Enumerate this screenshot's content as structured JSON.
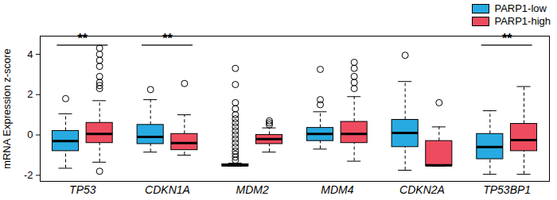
{
  "chart_data": {
    "type": "box",
    "y_label": "mRNA Expression z-score",
    "categories": [
      "TP53",
      "CDKN1A",
      "MDM2",
      "MDM4",
      "CDKN2A",
      "TP53BP1"
    ],
    "ylim": [
      -2.3,
      4.9
    ],
    "yticks": [
      -2,
      0,
      2,
      4
    ],
    "grid": false,
    "legend": "top-right",
    "series": [
      {
        "name": "PARP1-low",
        "color": "#27aae1",
        "boxes": [
          {
            "whisker_low": -1.65,
            "q1": -0.8,
            "median": -0.3,
            "q3": 0.2,
            "whisker_high": 1.05,
            "outliers": [
              1.8
            ]
          },
          {
            "whisker_low": -0.85,
            "q1": -0.45,
            "median": -0.1,
            "q3": 0.5,
            "whisker_high": 1.75,
            "outliers": [
              2.25
            ]
          },
          {
            "whisker_low": -1.55,
            "q1": -1.55,
            "median": -1.5,
            "q3": -1.45,
            "whisker_high": -1.4,
            "outliers": [
              -1.25,
              -1.1,
              -0.95,
              -0.8,
              -0.6,
              -0.4,
              -0.2,
              0.0,
              0.2,
              0.4,
              0.6,
              0.8,
              1.0,
              1.3,
              1.6,
              2.5,
              3.3
            ]
          },
          {
            "whisker_low": -0.7,
            "q1": -0.3,
            "median": 0.05,
            "q3": 0.35,
            "whisker_high": 1.15,
            "outliers": [
              1.5,
              1.75,
              3.25
            ]
          },
          {
            "whisker_low": -1.75,
            "q1": -0.6,
            "median": 0.1,
            "q3": 0.75,
            "whisker_high": 2.65,
            "outliers": [
              3.95
            ]
          },
          {
            "whisker_low": -1.95,
            "q1": -1.2,
            "median": -0.6,
            "q3": 0.05,
            "whisker_high": 1.2,
            "outliers": []
          }
        ]
      },
      {
        "name": "PARP1-high",
        "color": "#ef4b5f",
        "boxes": [
          {
            "whisker_low": -1.35,
            "q1": -0.4,
            "median": 0.05,
            "q3": 0.6,
            "whisker_high": 1.7,
            "outliers": [
              -1.8,
              2.3,
              2.45,
              2.6,
              2.9,
              3.4,
              3.7,
              4.0,
              4.3
            ]
          },
          {
            "whisker_low": -1.0,
            "q1": -0.75,
            "median": -0.4,
            "q3": 0.05,
            "whisker_high": 1.0,
            "outliers": [
              2.55
            ]
          },
          {
            "whisker_low": -0.85,
            "q1": -0.45,
            "median": -0.2,
            "q3": 0.0,
            "whisker_high": 0.35,
            "outliers": [
              0.5,
              0.6,
              0.7
            ]
          },
          {
            "whisker_low": -1.3,
            "q1": -0.4,
            "median": 0.05,
            "q3": 0.65,
            "whisker_high": 1.9,
            "outliers": [
              2.3,
              2.6,
              2.9,
              3.3,
              3.6
            ]
          },
          {
            "whisker_low": -1.55,
            "q1": -1.55,
            "median": -1.5,
            "q3": -0.3,
            "whisker_high": 0.4,
            "outliers": [
              1.6
            ]
          },
          {
            "whisker_low": -1.95,
            "q1": -0.8,
            "median": -0.25,
            "q3": 0.55,
            "whisker_high": 2.4,
            "outliers": []
          }
        ]
      }
    ],
    "annotations": [
      {
        "category": "TP53",
        "text": "**",
        "y": 4.45
      },
      {
        "category": "CDKN1A",
        "text": "**",
        "y": 4.45
      },
      {
        "category": "TP53BP1",
        "text": "**",
        "y": 4.45
      }
    ]
  }
}
